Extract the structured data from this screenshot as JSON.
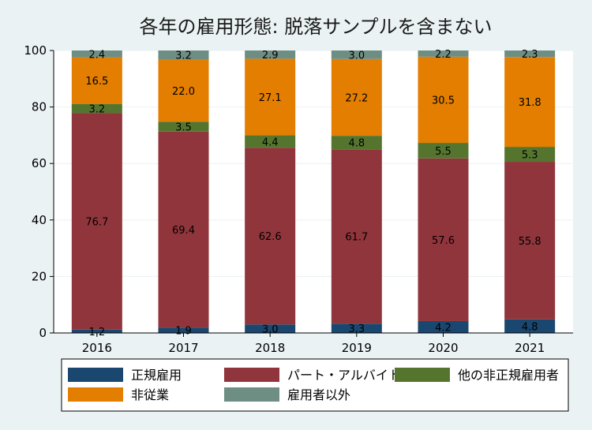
{
  "chart_data": {
    "type": "bar",
    "stacked": true,
    "title": "各年の雇用形態: 脱落サンプルを含まない",
    "xlabel": "",
    "ylabel": "",
    "ylim": [
      0,
      100
    ],
    "yticks": [
      "0",
      "20",
      "40",
      "60",
      "80",
      "100"
    ],
    "grid": true,
    "legend_position": "bottom",
    "categories": [
      "2016",
      "2017",
      "2018",
      "2019",
      "2020",
      "2021"
    ],
    "series": [
      {
        "name": "正規雇用",
        "color": "#1A476F",
        "values": [
          1.2,
          1.9,
          3.0,
          3.3,
          4.2,
          4.8
        ],
        "labels": [
          "1.2",
          "1.9",
          "3.0",
          "3.3",
          "4.2",
          "4.8"
        ]
      },
      {
        "name": "パート・アルバイト",
        "color": "#90353B",
        "values": [
          76.7,
          69.4,
          62.6,
          61.7,
          57.6,
          55.8
        ],
        "labels": [
          "76.7",
          "69.4",
          "62.6",
          "61.7",
          "57.6",
          "55.8"
        ]
      },
      {
        "name": "他の非正規雇用者",
        "color": "#55752F",
        "values": [
          3.2,
          3.5,
          4.4,
          4.8,
          5.5,
          5.3
        ],
        "labels": [
          "3.2",
          "3.5",
          "4.4",
          "4.8",
          "5.5",
          "5.3"
        ]
      },
      {
        "name": "非従業",
        "color": "#E37E00",
        "values": [
          16.5,
          22.0,
          27.1,
          27.2,
          30.5,
          31.8
        ],
        "labels": [
          "16.5",
          "22.0",
          "27.1",
          "27.2",
          "30.5",
          "31.8"
        ]
      },
      {
        "name": "雇用者以外",
        "color": "#6E8E84",
        "values": [
          2.4,
          3.2,
          2.9,
          3.0,
          2.2,
          2.3
        ],
        "labels": [
          "2.4",
          "3.2",
          "2.9",
          "3.0",
          "2.2",
          "2.3"
        ]
      }
    ]
  }
}
